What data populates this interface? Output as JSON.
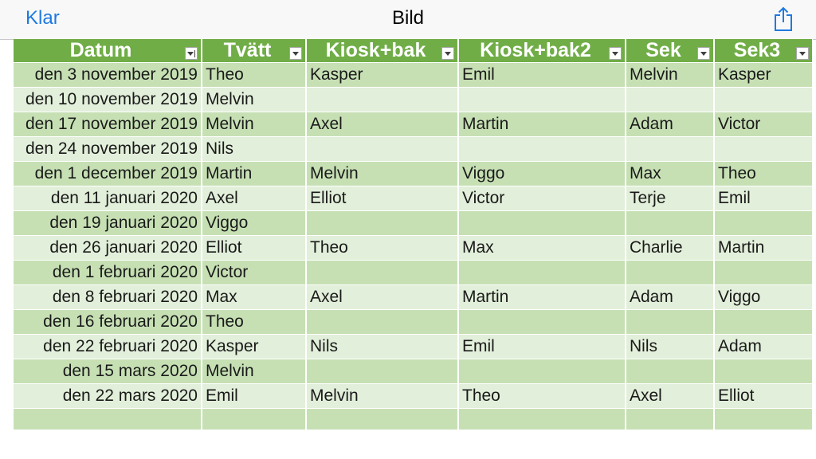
{
  "navbar": {
    "back_label": "Klar",
    "title": "Bild",
    "share_icon": "share-icon"
  },
  "table": {
    "headers": [
      "Datum",
      "Tvätt",
      "Kiosk+bak",
      "Kiosk+bak2",
      "Sek",
      "Sek3"
    ],
    "header_color": "#70ad47",
    "band_colors": [
      "#c6e0b4",
      "#e2efda"
    ],
    "rows": [
      [
        "den 3 november 2019",
        "Theo",
        "Kasper",
        "Emil",
        "Melvin",
        "Kasper"
      ],
      [
        "den 10 november 2019",
        "Melvin",
        "",
        "",
        "",
        ""
      ],
      [
        "den 17 november 2019",
        "Melvin",
        "Axel",
        "Martin",
        "Adam",
        "Victor"
      ],
      [
        "den 24 november 2019",
        "Nils",
        "",
        "",
        "",
        ""
      ],
      [
        "den 1 december 2019",
        "Martin",
        "Melvin",
        "Viggo",
        "Max",
        "Theo"
      ],
      [
        "den 11 januari 2020",
        "Axel",
        "Elliot",
        "Victor",
        "Terje",
        "Emil"
      ],
      [
        "den 19 januari 2020",
        "Viggo",
        "",
        "",
        "",
        ""
      ],
      [
        "den 26 januari 2020",
        "Elliot",
        "Theo",
        "Max",
        "Charlie",
        "Martin"
      ],
      [
        "den 1 februari 2020",
        "Victor",
        "",
        "",
        "",
        ""
      ],
      [
        "den 8 februari 2020",
        "Max",
        "Axel",
        "Martin",
        "Adam",
        "Viggo"
      ],
      [
        "den 16 februari 2020",
        "Theo",
        "",
        "",
        "",
        ""
      ],
      [
        "den 22 februari 2020",
        "Kasper",
        "Nils",
        "Emil",
        "Nils",
        "Adam"
      ],
      [
        "den 15 mars 2020",
        "Melvin",
        "",
        "",
        "",
        ""
      ],
      [
        "den 22 mars 2020",
        "Emil",
        "Melvin",
        "Theo",
        "Axel",
        "Elliot"
      ],
      [
        "",
        "",
        "",
        "",
        "",
        ""
      ]
    ]
  }
}
